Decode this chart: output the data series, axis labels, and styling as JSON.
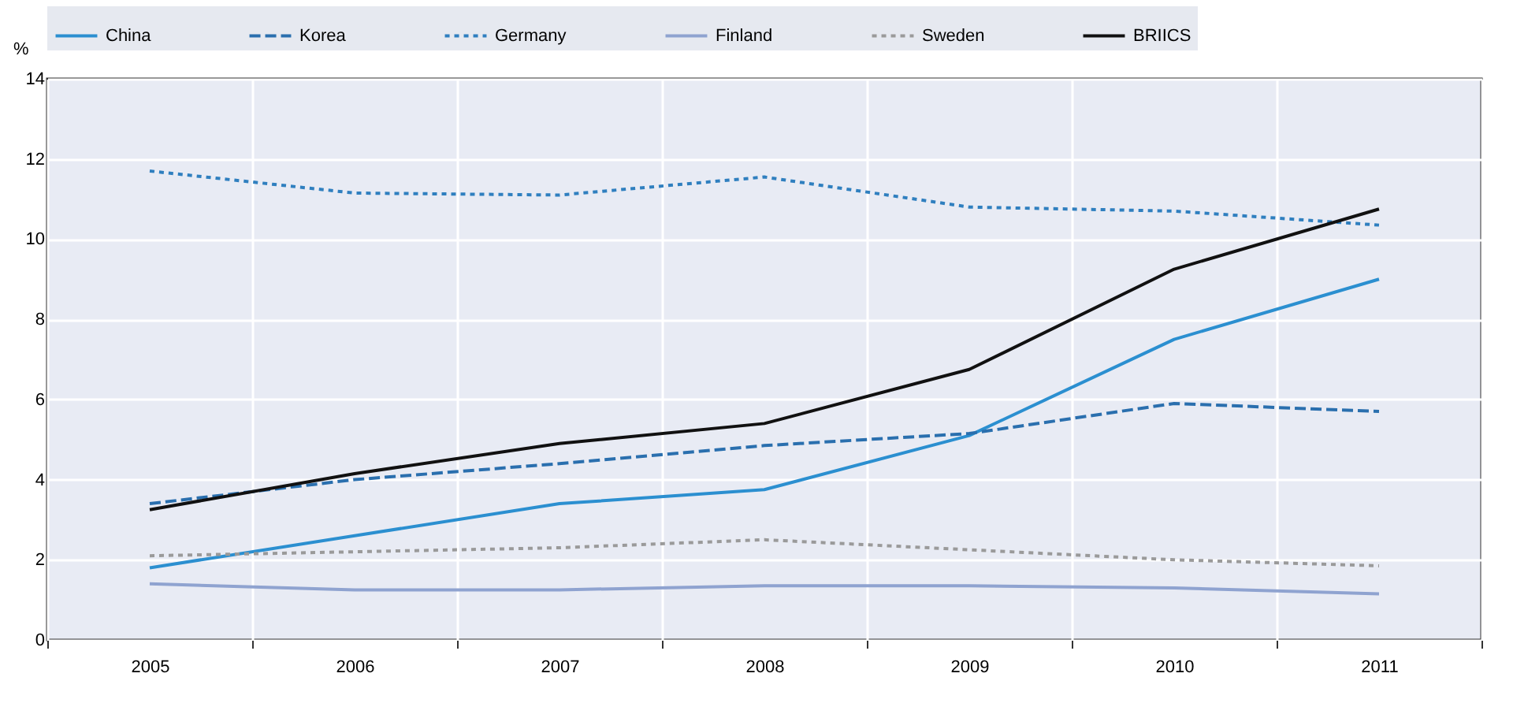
{
  "chart_data": {
    "type": "line",
    "ylabel": "%",
    "categories": [
      "2005",
      "2006",
      "2007",
      "2008",
      "2009",
      "2010",
      "2011"
    ],
    "ylim": [
      0,
      14
    ],
    "yticks": [
      0,
      2,
      4,
      6,
      8,
      10,
      12,
      14
    ],
    "grid": true,
    "legend": "top",
    "series": [
      {
        "name": "China",
        "color": "#2b8fd0",
        "line_style": "solid",
        "values": [
          1.8,
          2.6,
          3.4,
          3.75,
          5.1,
          7.5,
          9.0
        ]
      },
      {
        "name": "Korea",
        "color": "#2a6fae",
        "line_style": "dashed",
        "values": [
          3.4,
          4.0,
          4.4,
          4.85,
          5.15,
          5.9,
          5.7
        ]
      },
      {
        "name": "Germany",
        "color": "#2f7fbf",
        "line_style": "dotted",
        "values": [
          11.7,
          11.15,
          11.1,
          11.55,
          10.8,
          10.7,
          10.35
        ]
      },
      {
        "name": "Finland",
        "color": "#8fa3d0",
        "line_style": "solid",
        "values": [
          1.4,
          1.25,
          1.25,
          1.35,
          1.35,
          1.3,
          1.15
        ]
      },
      {
        "name": "Sweden",
        "color": "#9a9a9a",
        "line_style": "dotted",
        "values": [
          2.1,
          2.2,
          2.3,
          2.5,
          2.25,
          2.0,
          1.85
        ]
      },
      {
        "name": "BRIICS",
        "color": "#111111",
        "line_style": "solid",
        "values": [
          3.25,
          4.15,
          4.9,
          5.4,
          6.75,
          9.25,
          10.75
        ]
      }
    ]
  }
}
